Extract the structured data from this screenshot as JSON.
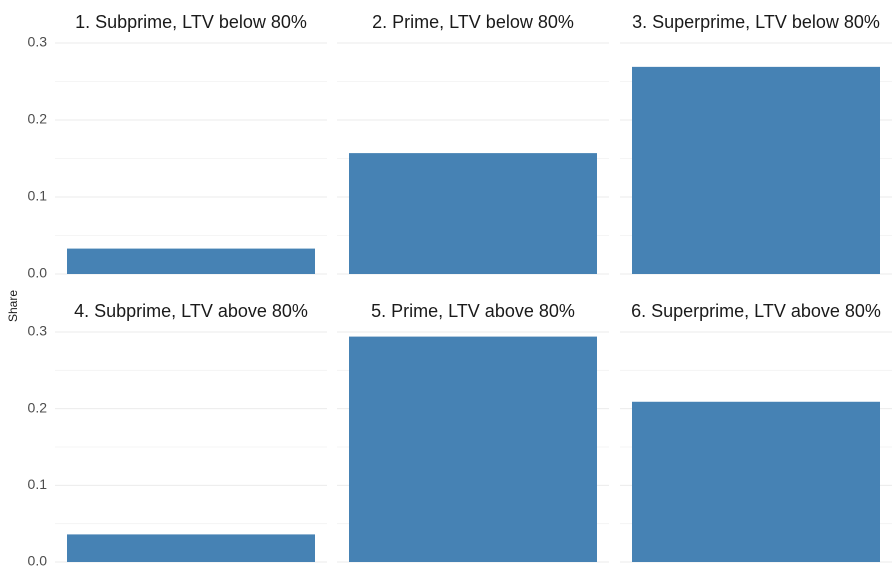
{
  "y_label": "Share",
  "chart_data": [
    {
      "type": "bar",
      "title": "1. Subprime, LTV below 80%",
      "categories": [
        null
      ],
      "values": [
        0.033
      ],
      "color": "#4682b4",
      "ylim": [
        0,
        0.3
      ],
      "yticks": [
        {
          "value": 0,
          "label": "0.0"
        },
        0.1,
        0.2,
        0.3
      ],
      "grid": true
    },
    {
      "type": "bar",
      "title": "2. Prime, LTV below 80%",
      "categories": [
        null
      ],
      "values": [
        0.157
      ],
      "color": "#4682b4",
      "ylim": [
        0,
        0.3
      ],
      "yticks": [
        {
          "value": 0,
          "label": "0.0"
        },
        0.1,
        0.2,
        0.3
      ],
      "grid": true
    },
    {
      "type": "bar",
      "title": "3. Superprime, LTV below 80%",
      "categories": [
        null
      ],
      "values": [
        0.269
      ],
      "color": "#4682b4",
      "ylim": [
        0,
        0.3
      ],
      "yticks": [
        {
          "value": 0,
          "label": "0.0"
        },
        0.1,
        0.2,
        0.3
      ],
      "grid": true
    },
    {
      "type": "bar",
      "title": "4. Subprime, LTV above 80%",
      "categories": [
        null
      ],
      "values": [
        0.036
      ],
      "color": "#4682b4",
      "ylim": [
        0,
        0.3
      ],
      "yticks": [
        {
          "value": 0,
          "label": "0.0"
        },
        0.1,
        0.2,
        0.3
      ],
      "grid": true
    },
    {
      "type": "bar",
      "title": "5. Prime, LTV above 80%",
      "categories": [
        null
      ],
      "values": [
        0.294
      ],
      "color": "#4682b4",
      "ylim": [
        0,
        0.3
      ],
      "yticks": [
        {
          "value": 0,
          "label": "0.0"
        },
        0.1,
        0.2,
        0.3
      ],
      "grid": true
    },
    {
      "type": "bar",
      "title": "6. Superprime, LTV above 80%",
      "categories": [
        null
      ],
      "values": [
        0.209
      ],
      "color": "#4682b4",
      "ylim": [
        0,
        0.3
      ],
      "yticks": [
        {
          "value": 0,
          "label": "0.0"
        },
        0.1,
        0.2,
        0.3
      ],
      "grid": true
    }
  ]
}
